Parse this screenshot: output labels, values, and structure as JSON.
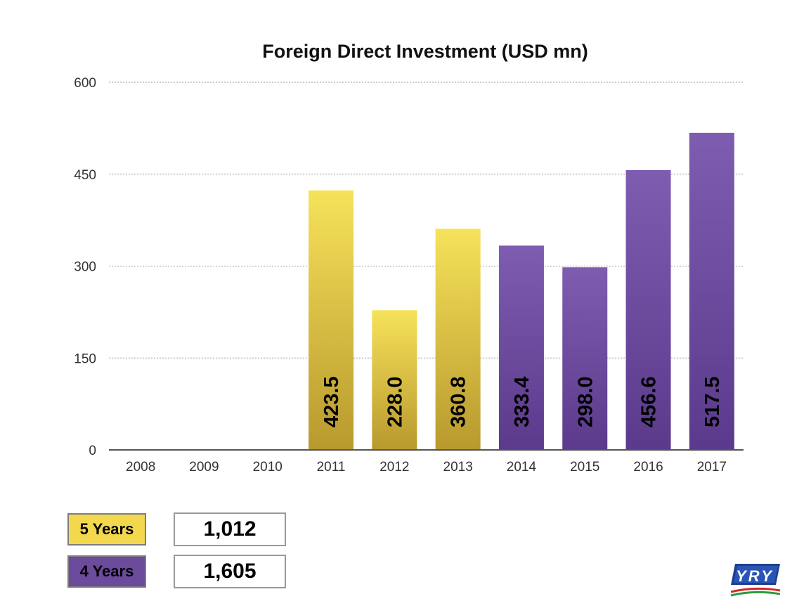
{
  "chart_data": {
    "type": "bar",
    "title": "Foreign Direct Investment (USD mn)",
    "categories": [
      "2008",
      "2009",
      "2010",
      "2011",
      "2012",
      "2013",
      "2014",
      "2015",
      "2016",
      "2017"
    ],
    "values": [
      null,
      null,
      null,
      423.5,
      228.0,
      360.8,
      333.4,
      298.0,
      456.6,
      517.5
    ],
    "value_labels": [
      "",
      "",
      "",
      "423.5",
      "228.0",
      "360.8",
      "333.4",
      "298.0",
      "456.6",
      "517.5"
    ],
    "period_groups": [
      "none",
      "none",
      "none",
      "five",
      "five",
      "five",
      "four",
      "four",
      "four",
      "four"
    ],
    "ylim": [
      0,
      600
    ],
    "yticks": [
      0,
      150,
      300,
      450,
      600
    ],
    "ytick_labels": [
      "0",
      "150",
      "300",
      "450",
      "600"
    ],
    "grid": true,
    "xlabel": "",
    "ylabel": ""
  },
  "colors": {
    "yellow_top": "#f6e25a",
    "yellow_bottom": "#b8992e",
    "purple_top": "#7e5db0",
    "purple_bottom": "#5b3a8c",
    "axis": "#555555",
    "grid": "#9a9a9a"
  },
  "summary": {
    "five_years_label": "5 Years",
    "five_years_value": "1,012",
    "four_years_label": "4 Years",
    "four_years_value": "1,605"
  },
  "logo": {
    "text": "YRY",
    "icon": "yry-logo-icon"
  }
}
